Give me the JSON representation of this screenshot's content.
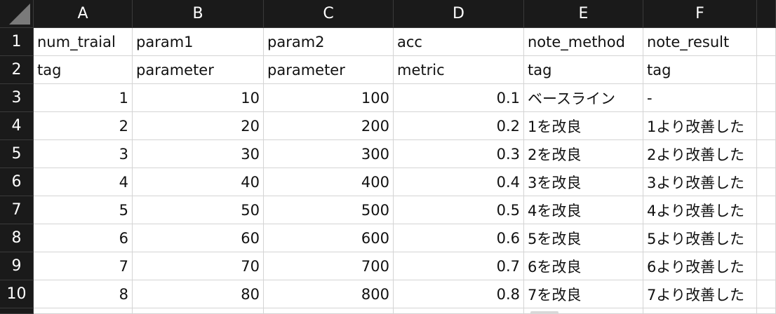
{
  "columns": [
    "A",
    "B",
    "C",
    "D",
    "E",
    "F"
  ],
  "rows": [
    {
      "num": "1",
      "cells": [
        "num_traial",
        "param1",
        "param2",
        "acc",
        "note_method",
        "note_result"
      ]
    },
    {
      "num": "2",
      "cells": [
        "tag",
        "parameter",
        "parameter",
        "metric",
        "tag",
        "tag"
      ]
    },
    {
      "num": "3",
      "cells": [
        "1",
        "10",
        "100",
        "0.1",
        "ベースライン",
        "-"
      ]
    },
    {
      "num": "4",
      "cells": [
        "2",
        "20",
        "200",
        "0.2",
        "1を改良",
        "1より改善した"
      ]
    },
    {
      "num": "5",
      "cells": [
        "3",
        "30",
        "300",
        "0.3",
        "2を改良",
        "2より改善した"
      ]
    },
    {
      "num": "6",
      "cells": [
        "4",
        "40",
        "400",
        "0.4",
        "3を改良",
        "3より改善した"
      ]
    },
    {
      "num": "7",
      "cells": [
        "5",
        "50",
        "500",
        "0.5",
        "4を改良",
        "4より改善した"
      ]
    },
    {
      "num": "8",
      "cells": [
        "6",
        "60",
        "600",
        "0.6",
        "5を改良",
        "5より改善した"
      ]
    },
    {
      "num": "9",
      "cells": [
        "7",
        "70",
        "700",
        "0.7",
        "6を改良",
        "6より改善した"
      ]
    },
    {
      "num": "10",
      "cells": [
        "8",
        "80",
        "800",
        "0.8",
        "7を改良",
        "7より改善した"
      ]
    }
  ],
  "colors": {
    "header_bg": "#1a1a1a",
    "header_text": "#ffffff",
    "grid": "#d4d4d4"
  }
}
